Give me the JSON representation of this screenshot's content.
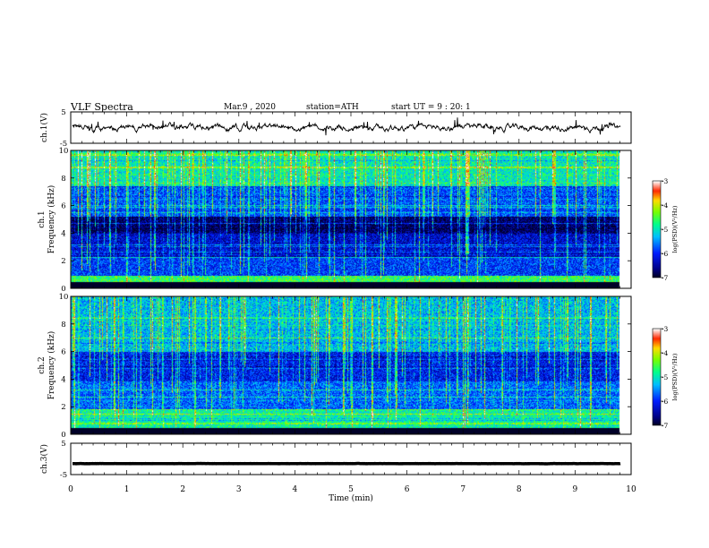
{
  "header": {
    "title": "VLF Spectra",
    "date": "Mar.9 , 2020",
    "station": "station=ATH",
    "start": "start UT = 9 : 20: 1"
  },
  "chart_data": {
    "type": "heatmap",
    "title": "VLF Spectra",
    "xlabel": "Time (min)",
    "xlim": [
      0,
      10
    ],
    "xticks": [
      "0",
      "1",
      "2",
      "3",
      "4",
      "5",
      "6",
      "7",
      "8",
      "9",
      "10"
    ],
    "data_end_min": 9.8,
    "panels": [
      {
        "kind": "waveform",
        "ylabel": "ch.1(V)",
        "ylim": [
          -5,
          5
        ],
        "yticks": [
          "5",
          "-5"
        ],
        "baseline": 0
      },
      {
        "kind": "spectrogram",
        "ylabel": "ch.1 Frequency (kHz)",
        "ylim": [
          0,
          10
        ],
        "yticks": [
          "0",
          "2",
          "4",
          "6",
          "8",
          "10"
        ],
        "colorbar": {
          "label": "log(PSD)(V²/Hz)",
          "range": [
            -7,
            -3
          ],
          "ticks": [
            "-3",
            "-4",
            "-5",
            "-6",
            "-7"
          ]
        },
        "bands_khz": [
          {
            "from": 0.0,
            "to": 0.4,
            "level": -7.0
          },
          {
            "from": 0.4,
            "to": 0.9,
            "level": -4.6
          },
          {
            "from": 0.9,
            "to": 2.3,
            "level": -5.9
          },
          {
            "from": 2.3,
            "to": 4.0,
            "level": -6.3
          },
          {
            "from": 4.0,
            "to": 5.2,
            "level": -6.8
          },
          {
            "from": 5.2,
            "to": 7.4,
            "level": -5.8
          },
          {
            "from": 7.4,
            "to": 10.0,
            "level": -5.0
          }
        ]
      },
      {
        "kind": "spectrogram",
        "ylabel": "ch.2 Frequency (kHz)",
        "ylim": [
          0,
          10
        ],
        "yticks": [
          "0",
          "2",
          "4",
          "6",
          "8",
          "10"
        ],
        "colorbar": {
          "label": "log(PSD)(V²/Hz)",
          "range": [
            -7,
            -3
          ],
          "ticks": [
            "-3",
            "-4",
            "-5",
            "-6",
            "-7"
          ]
        },
        "bands_khz": [
          {
            "from": 0.0,
            "to": 0.3,
            "level": -7.0
          },
          {
            "from": 0.3,
            "to": 1.8,
            "level": -4.9
          },
          {
            "from": 1.8,
            "to": 3.8,
            "level": -5.7
          },
          {
            "from": 3.8,
            "to": 6.0,
            "level": -6.1
          },
          {
            "from": 6.0,
            "to": 10.0,
            "level": -5.3
          }
        ]
      },
      {
        "kind": "waveform",
        "ylabel": "ch.3(V)",
        "ylim": [
          -5,
          5
        ],
        "yticks": [
          "5",
          "-5"
        ],
        "baseline": -1.5
      }
    ]
  }
}
